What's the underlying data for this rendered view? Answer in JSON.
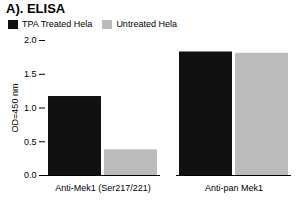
{
  "chart_data": {
    "type": "bar",
    "title": "A). ELISA",
    "ylabel": "OD=450 nm",
    "categories": [
      "Anti-Mek1 (Ser217/221)",
      "Anti-pan Mek1"
    ],
    "series": [
      {
        "name": "TPA Treated Hela",
        "color": "#111111",
        "values": [
          1.17,
          1.83
        ]
      },
      {
        "name": "Untreated Hela",
        "color": "#bbbbbb",
        "values": [
          0.38,
          1.81
        ]
      }
    ],
    "ylim": [
      0,
      2.0
    ],
    "yticks": [
      {
        "value": 0,
        "label": "0.0"
      },
      0.5,
      {
        "value": 1.0,
        "label": "1.0"
      },
      1.5,
      {
        "value": 2.0,
        "label": "2.0"
      }
    ],
    "legend": "upper left"
  }
}
